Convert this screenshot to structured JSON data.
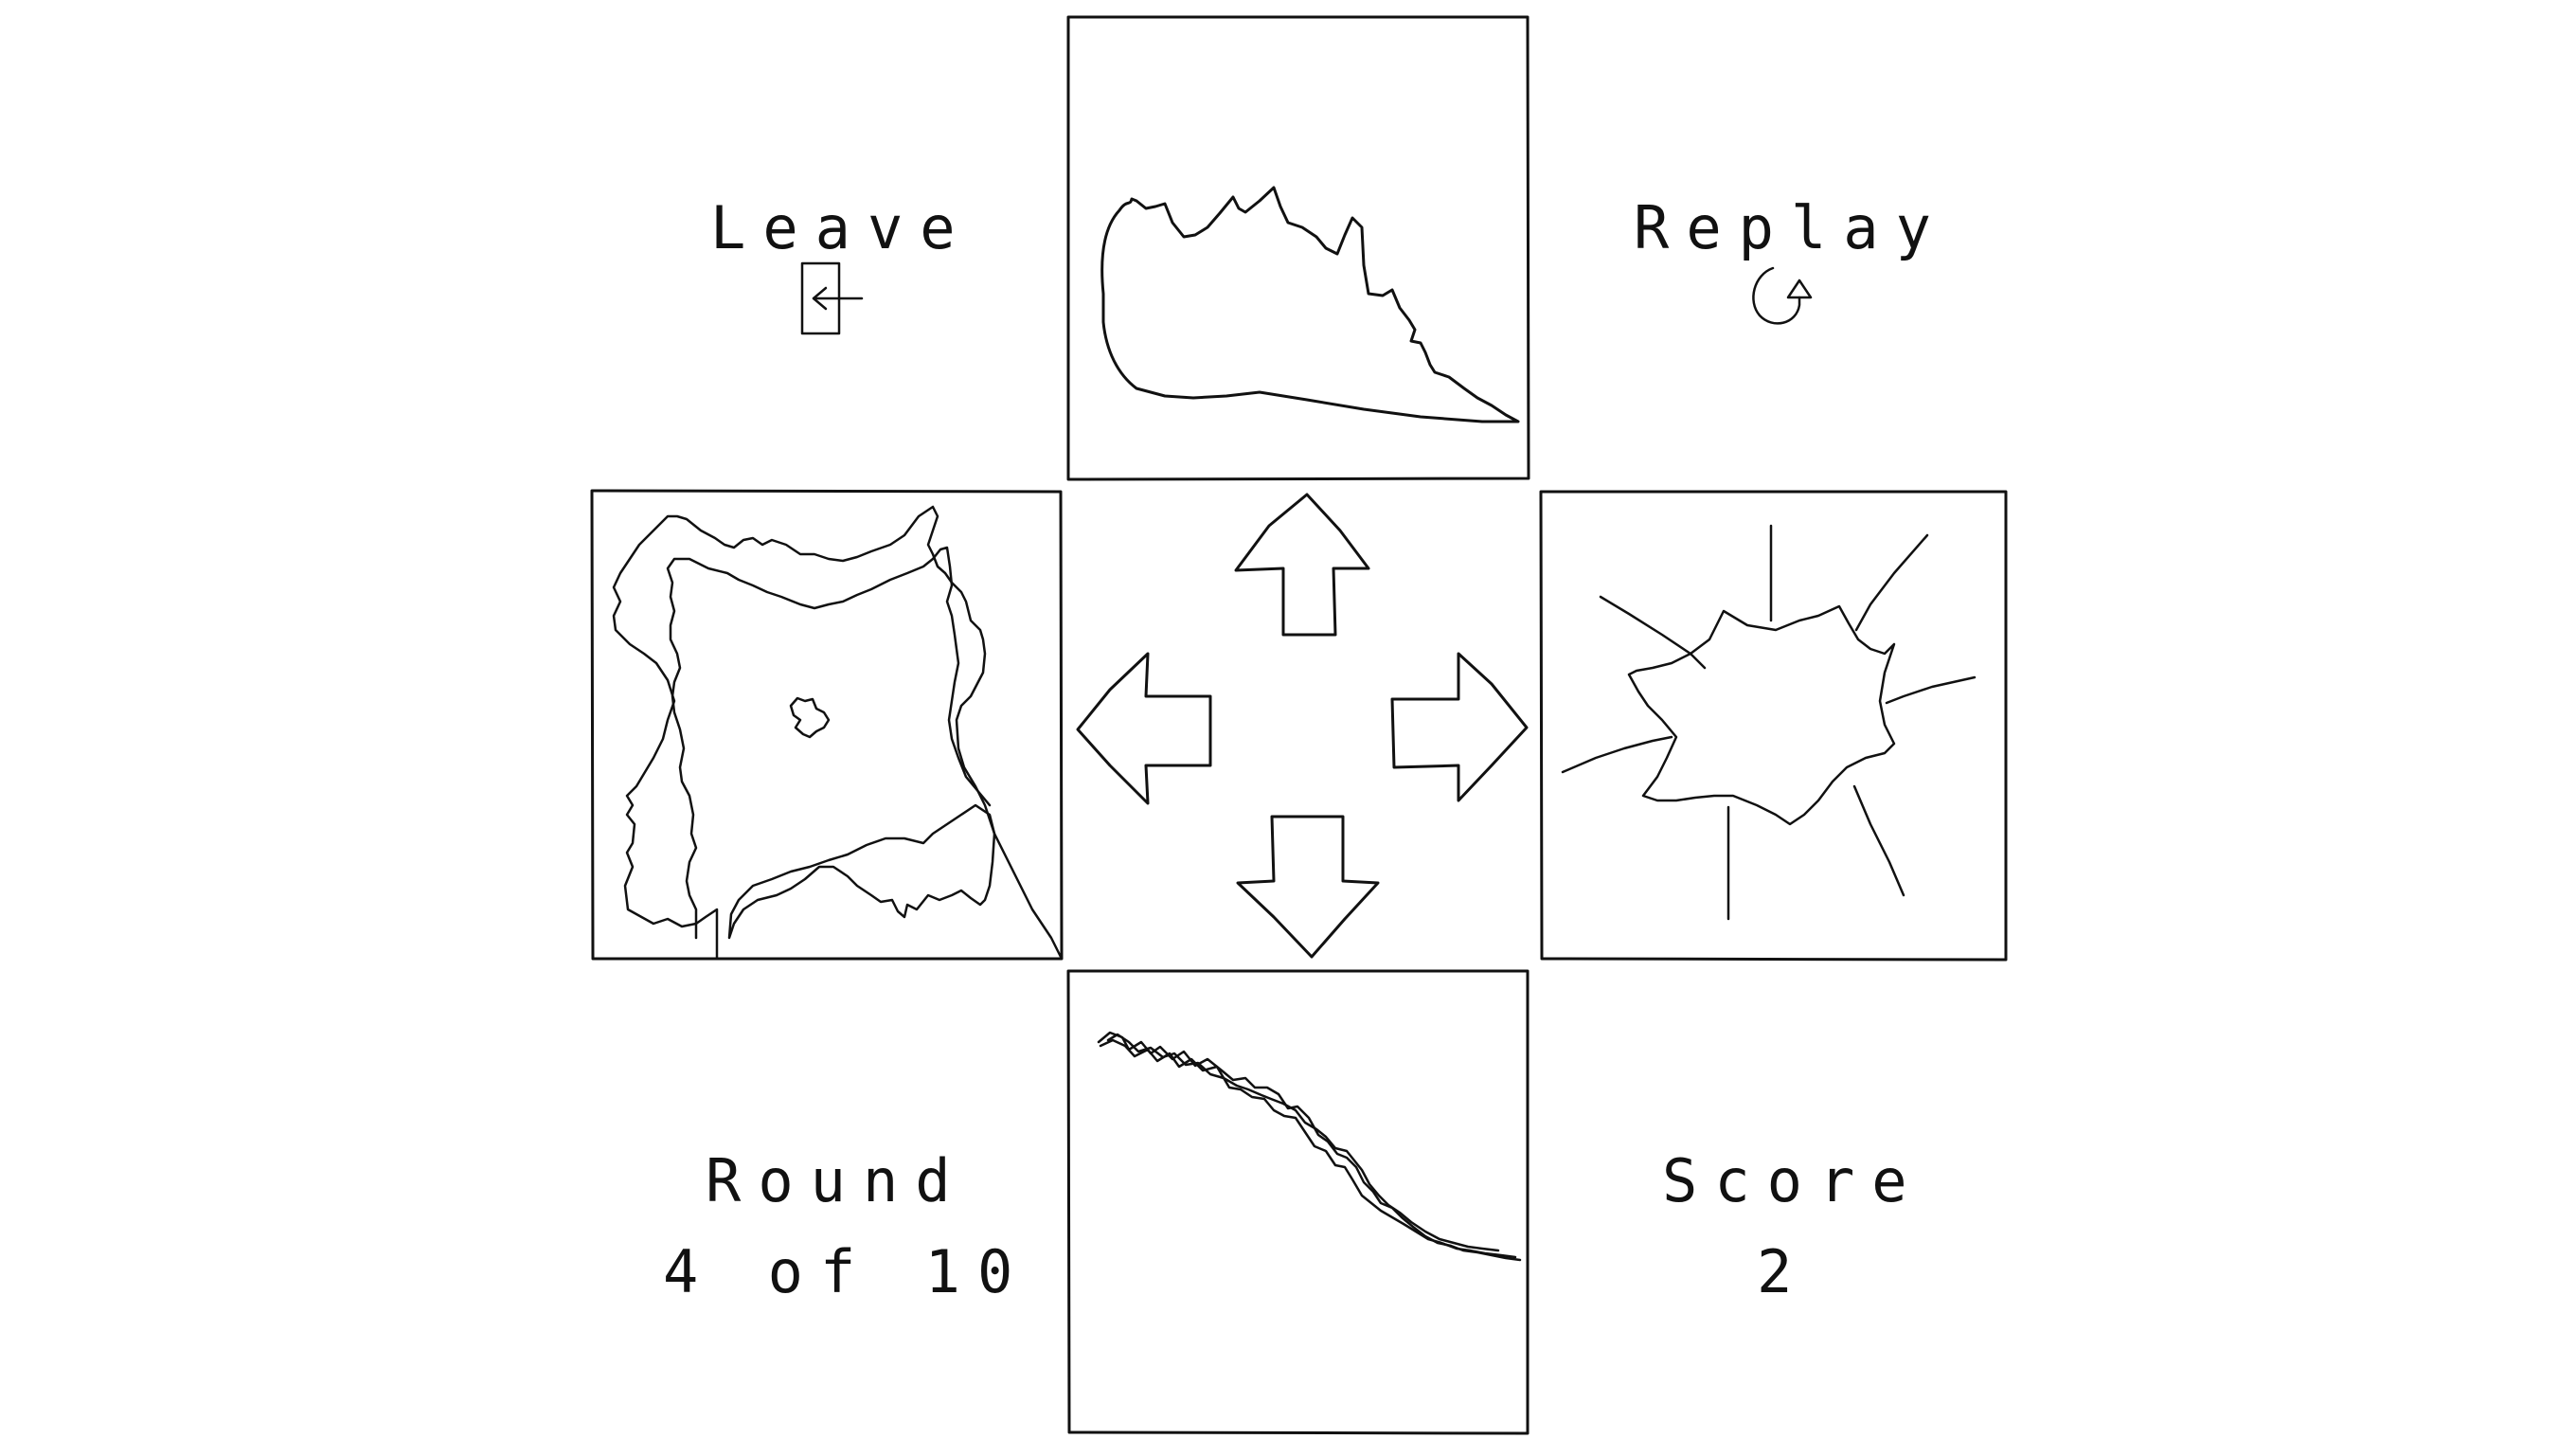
{
  "controls": {
    "leave_label": "Leave",
    "replay_label": "Replay"
  },
  "status": {
    "round_label": "Round",
    "round_value": "4 of 10",
    "score_label": "Score",
    "score_value": "2"
  },
  "icons": {
    "leave": "door-exit-icon",
    "replay": "replay-arrow-icon"
  },
  "colors": {
    "ink": "#111111",
    "background": "#ffffff"
  }
}
